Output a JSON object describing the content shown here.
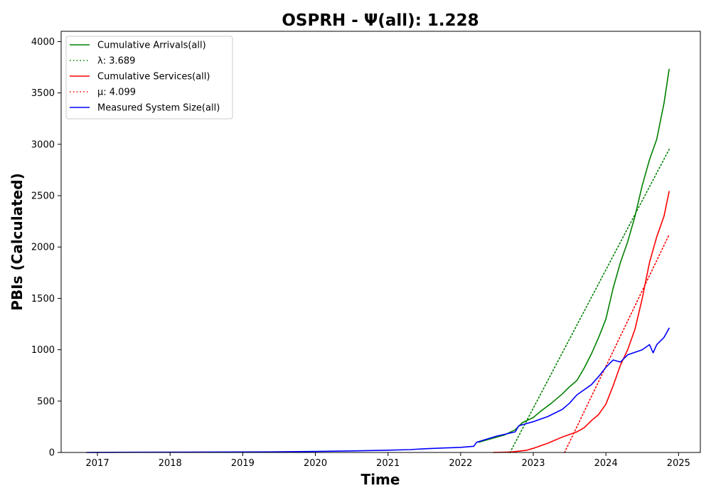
{
  "chart_data": {
    "type": "line",
    "title": "OSPRH -  Ψ(all): 1.228",
    "xlabel": "Time",
    "ylabel": "PBIs (Calculated)",
    "xlim": [
      2016.5,
      2025.3
    ],
    "ylim": [
      0,
      4100
    ],
    "x_ticks": [
      2017,
      2018,
      2019,
      2020,
      2021,
      2022,
      2023,
      2024,
      2025
    ],
    "x_tick_labels": [
      "2017",
      "2018",
      "2019",
      "2020",
      "2021",
      "2022",
      "2023",
      "2024",
      "2025"
    ],
    "y_ticks": [
      0,
      500,
      1000,
      1500,
      2000,
      2500,
      3000,
      3500,
      4000
    ],
    "y_tick_labels": [
      "0",
      "500",
      "1000",
      "1500",
      "2000",
      "2500",
      "3000",
      "3500",
      "4000"
    ],
    "grid": false,
    "legend_position": "top-left",
    "series": [
      {
        "name": "Cumulative Arrivals(all)",
        "color": "#008000",
        "style": "solid",
        "x": [
          2022.25,
          2022.4,
          2022.6,
          2022.75,
          2022.85,
          2023.0,
          2023.1,
          2023.25,
          2023.4,
          2023.5,
          2023.6,
          2023.7,
          2023.8,
          2023.9,
          2024.0,
          2024.1,
          2024.2,
          2024.3,
          2024.4,
          2024.5,
          2024.6,
          2024.7,
          2024.8,
          2024.87
        ],
        "y": [
          100,
          130,
          170,
          220,
          290,
          340,
          400,
          480,
          570,
          640,
          700,
          820,
          960,
          1120,
          1300,
          1600,
          1850,
          2050,
          2300,
          2600,
          2850,
          3050,
          3400,
          3730
        ]
      },
      {
        "name": "λ: 3.689",
        "color": "#008000",
        "style": "dotted",
        "x": [
          2022.68,
          2024.87
        ],
        "y": [
          0,
          2950
        ]
      },
      {
        "name": "Cumulative Services(all)",
        "color": "#ff0000",
        "style": "solid",
        "x": [
          2022.45,
          2022.7,
          2022.9,
          2023.0,
          2023.2,
          2023.4,
          2023.6,
          2023.7,
          2023.8,
          2023.9,
          2024.0,
          2024.1,
          2024.2,
          2024.3,
          2024.4,
          2024.5,
          2024.6,
          2024.7,
          2024.8,
          2024.87
        ],
        "y": [
          0,
          5,
          20,
          40,
          90,
          150,
          200,
          240,
          310,
          370,
          470,
          650,
          850,
          1000,
          1200,
          1500,
          1850,
          2100,
          2300,
          2540
        ]
      },
      {
        "name": "μ: 4.099",
        "color": "#ff0000",
        "style": "dotted",
        "x": [
          2023.43,
          2024.87
        ],
        "y": [
          0,
          2120
        ]
      },
      {
        "name": "Measured System Size(all)",
        "color": "#0000ff",
        "style": "solid",
        "x": [
          2016.85,
          2017.5,
          2018.5,
          2019.5,
          2020.0,
          2020.5,
          2021.0,
          2021.3,
          2021.5,
          2021.8,
          2022.0,
          2022.18,
          2022.22,
          2022.5,
          2022.75,
          2022.8,
          2023.0,
          2023.2,
          2023.4,
          2023.5,
          2023.6,
          2023.8,
          2023.9,
          2024.0,
          2024.1,
          2024.2,
          2024.3,
          2024.5,
          2024.6,
          2024.65,
          2024.7,
          2024.8,
          2024.87
        ],
        "y": [
          0,
          2,
          4,
          6,
          10,
          15,
          22,
          28,
          36,
          44,
          50,
          60,
          100,
          160,
          200,
          260,
          300,
          350,
          420,
          480,
          560,
          660,
          740,
          830,
          900,
          880,
          950,
          1000,
          1050,
          970,
          1050,
          1120,
          1210
        ]
      }
    ]
  }
}
